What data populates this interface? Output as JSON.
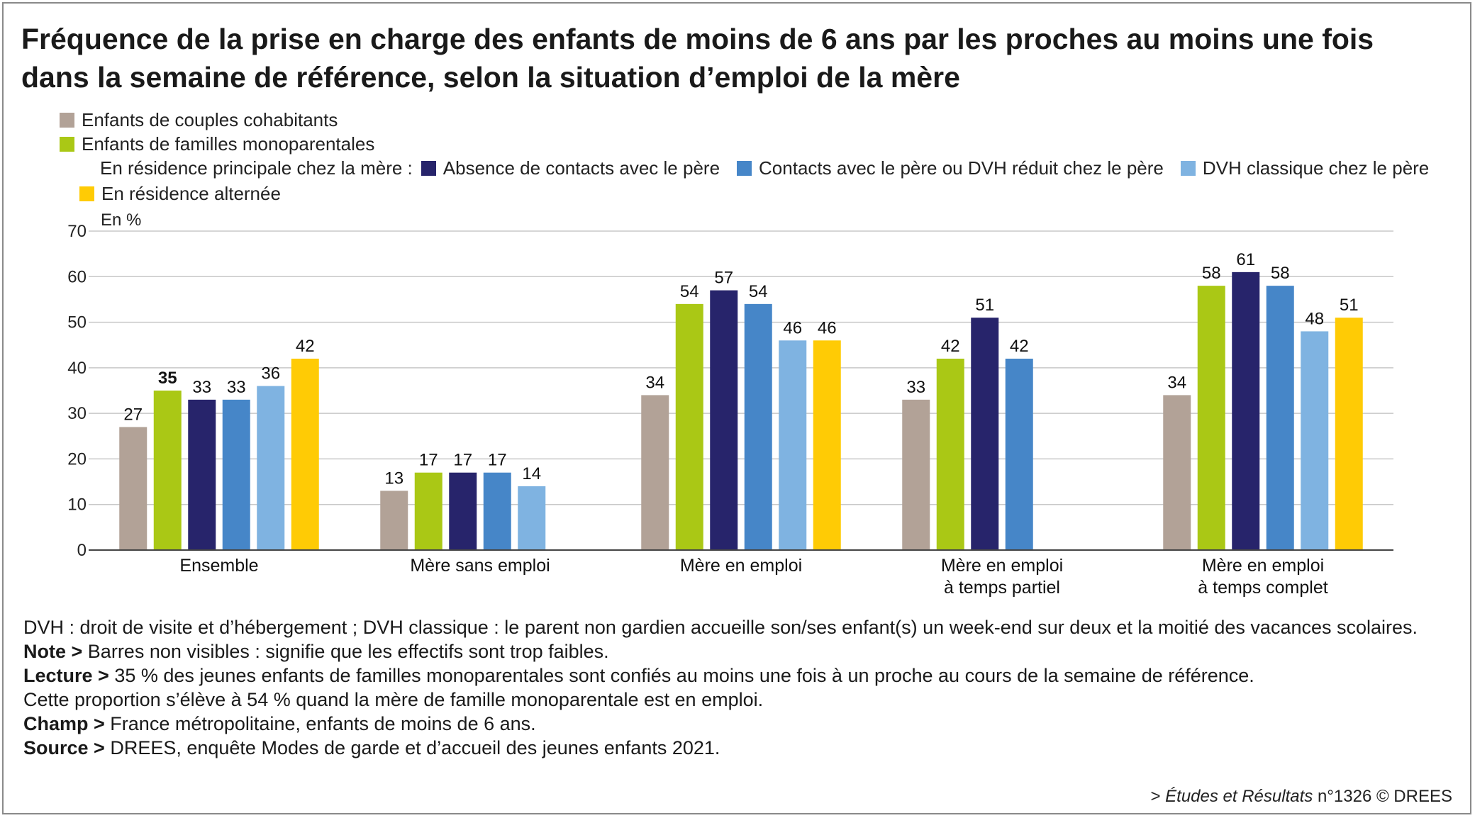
{
  "title": "Fréquence de la prise en charge des enfants de moins de 6 ans par les proches au moins une fois dans la semaine de référence, selon la situation d’emploi de la mère",
  "legend": {
    "couples": "Enfants de couples cohabitants",
    "mono": "Enfants de familles monoparentales",
    "residence_label": "En résidence principale chez la mère :",
    "absence": "Absence de contacts avec le père",
    "contacts": "Contacts avec le père ou DVH réduit chez le père",
    "dvh": "DVH classique chez le père",
    "alternee": "En résidence alternée"
  },
  "colors": {
    "couples": "#b2a297",
    "mono": "#aac815",
    "absence": "#27246b",
    "contacts": "#4686c8",
    "dvh": "#7fb3e1",
    "alternee": "#ffcb05"
  },
  "chart_data": {
    "type": "bar",
    "ylabel": "En %",
    "ylim": [
      0,
      70
    ],
    "yticks": [
      0,
      10,
      20,
      30,
      40,
      50,
      60,
      70
    ],
    "grid": true,
    "legend_position": "top-left",
    "categories": [
      [
        "Ensemble"
      ],
      [
        "Mère sans emploi"
      ],
      [
        "Mère en emploi"
      ],
      [
        "Mère en emploi",
        "à temps partiel"
      ],
      [
        "Mère en emploi",
        "à temps complet"
      ]
    ],
    "series": [
      {
        "key": "couples",
        "name": "Enfants de couples cohabitants",
        "values": [
          27,
          13,
          34,
          33,
          34
        ]
      },
      {
        "key": "mono",
        "name": "Enfants de familles monoparentales",
        "values": [
          35,
          17,
          54,
          42,
          58
        ]
      },
      {
        "key": "absence",
        "name": "Absence de contacts avec le père",
        "values": [
          33,
          17,
          57,
          51,
          61
        ]
      },
      {
        "key": "contacts",
        "name": "Contacts avec le père ou DVH réduit chez le père",
        "values": [
          33,
          17,
          54,
          42,
          58
        ]
      },
      {
        "key": "dvh",
        "name": "DVH classique chez le père",
        "values": [
          36,
          14,
          46,
          null,
          48
        ]
      },
      {
        "key": "alternee",
        "name": "En résidence alternée",
        "values": [
          42,
          null,
          46,
          null,
          51
        ]
      }
    ],
    "bold_labels": [
      {
        "series": "mono",
        "category": 0
      }
    ]
  },
  "notes": {
    "dvh_text": "DVH : droit de visite et d’hébergement ; DVH classique : le parent non gardien accueille son/ses enfant(s) un week-end sur deux et la moitié des vacances scolaires.",
    "note_label": "Note >",
    "note_text": "Barres non visibles : signifie que les effectifs sont trop faibles.",
    "lecture_label": "Lecture >",
    "lecture_text1": "35 % des jeunes enfants de familles monoparentales sont confiés au moins une fois à un proche au cours de la semaine de référence.",
    "lecture_text2": "Cette proportion s’élève à 54 % quand la mère de famille monoparentale est en emploi.",
    "champ_label": "Champ >",
    "champ_text": "France métropolitaine, enfants de moins de 6 ans.",
    "source_label": "Source >",
    "source_text": "DREES, enquête Modes de garde et d’accueil des jeunes enfants 2021."
  },
  "credit": {
    "prefix": ">",
    "publication": "Études et Résultats",
    "number": "n°1326 © DREES"
  }
}
